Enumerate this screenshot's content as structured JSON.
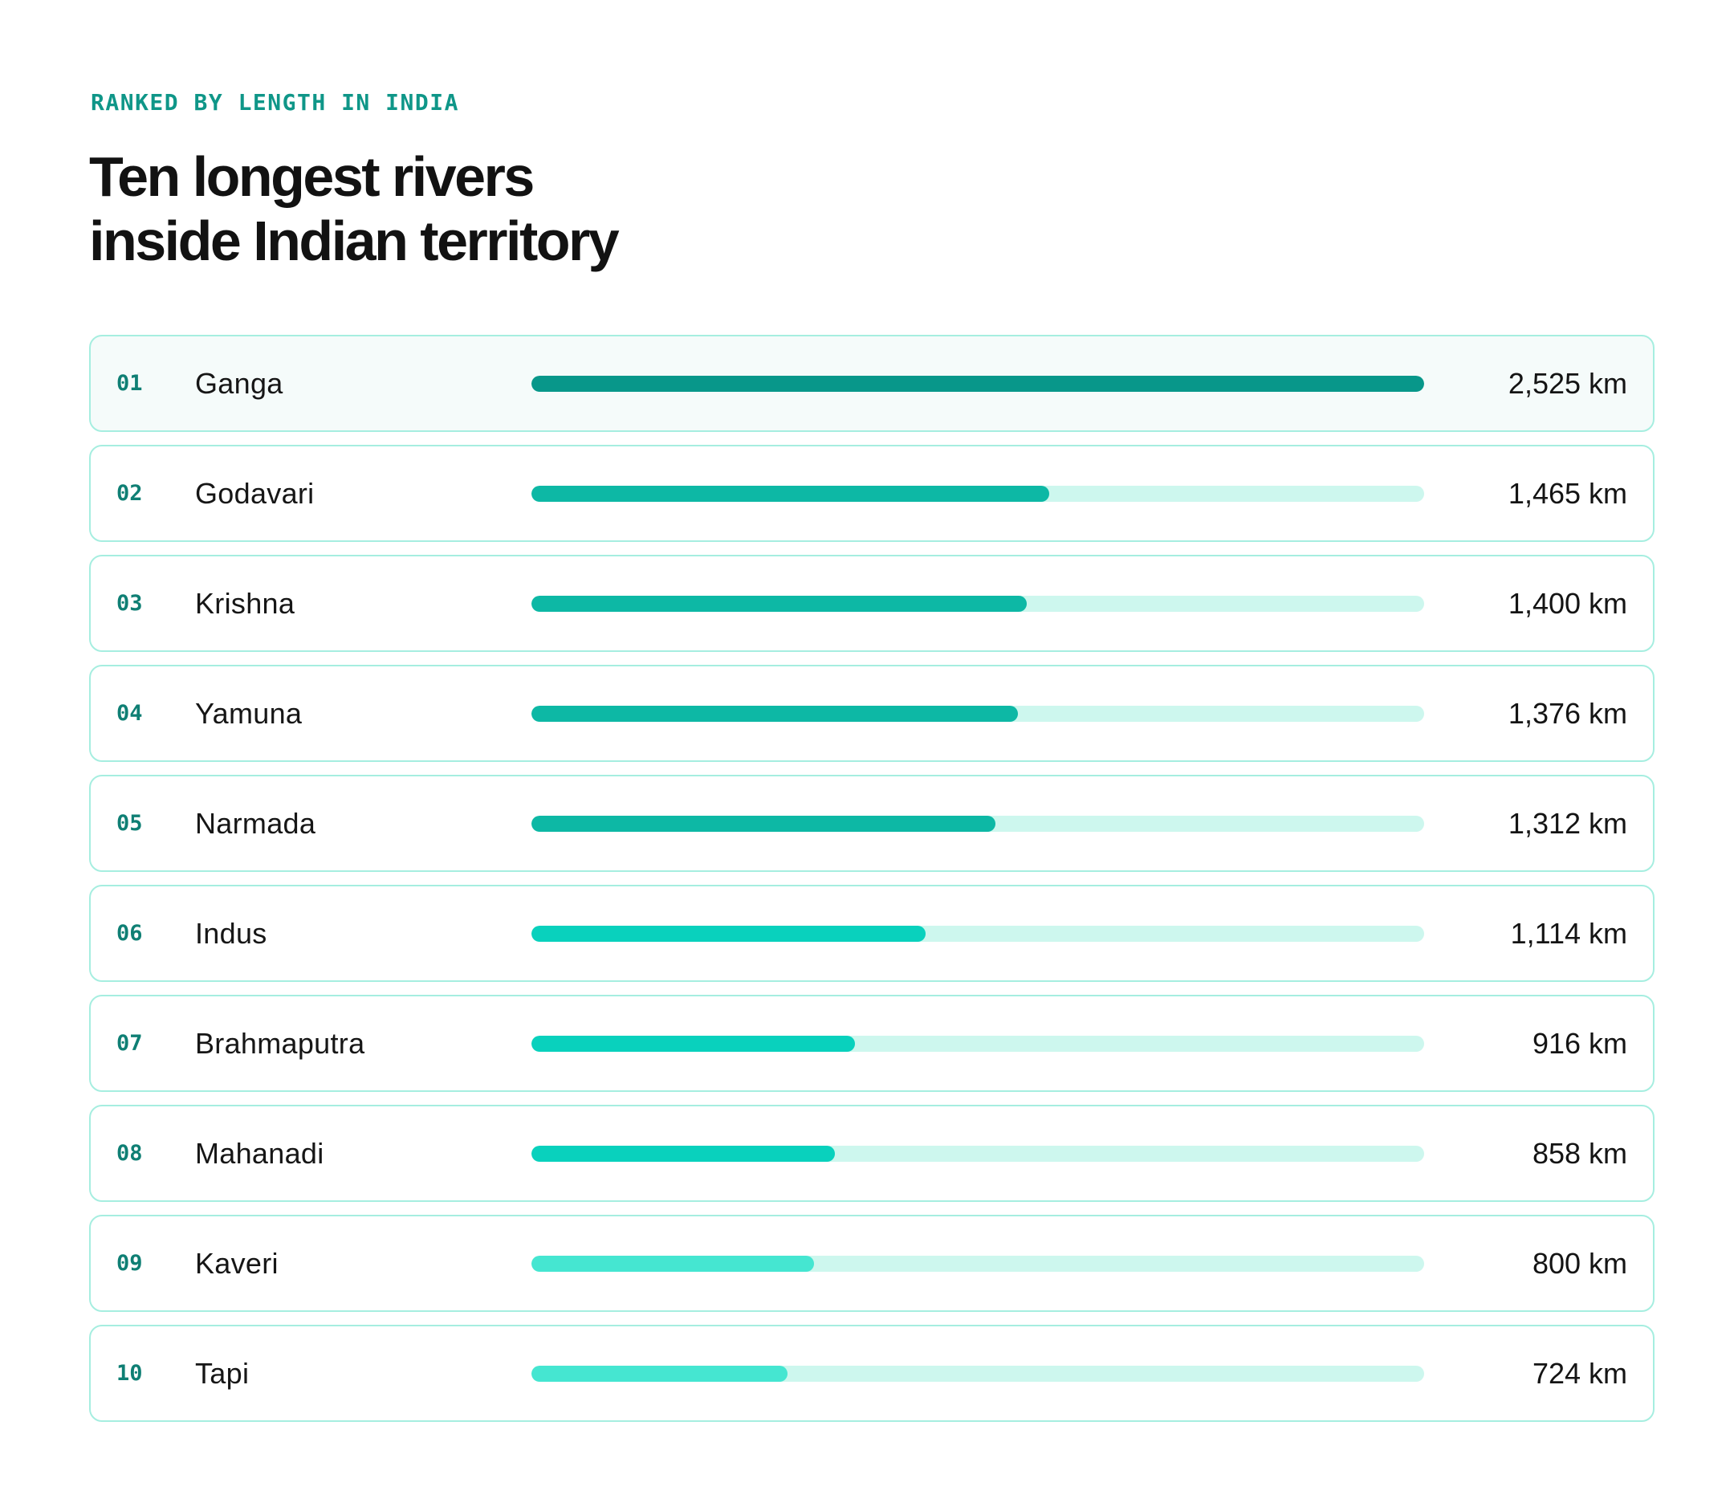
{
  "header": {
    "eyebrow": "RANKED BY LENGTH IN INDIA",
    "title_line1": "Ten longest rivers",
    "title_line2": "inside Indian territory"
  },
  "unit": "km",
  "colors": {
    "track": "#cdf7ee",
    "tier_1": "#08978a",
    "tier_2": "#0db8a5",
    "tier_3": "#09d1bd",
    "tier_4": "#45e6d1"
  },
  "chart_data": {
    "type": "bar",
    "orientation": "horizontal",
    "title": "Ten longest rivers inside Indian territory",
    "subtitle": "RANKED BY LENGTH IN INDIA",
    "xlabel": "",
    "ylabel": "",
    "xlim": [
      0,
      2525
    ],
    "grid": false,
    "legend": "none",
    "rows": [
      {
        "rank": "01",
        "name": "Ganga",
        "value": 2525,
        "label": "2,525 km",
        "tier": "tier_1"
      },
      {
        "rank": "02",
        "name": "Godavari",
        "value": 1465,
        "label": "1,465 km",
        "tier": "tier_2"
      },
      {
        "rank": "03",
        "name": "Krishna",
        "value": 1400,
        "label": "1,400 km",
        "tier": "tier_2"
      },
      {
        "rank": "04",
        "name": "Yamuna",
        "value": 1376,
        "label": "1,376 km",
        "tier": "tier_2"
      },
      {
        "rank": "05",
        "name": "Narmada",
        "value": 1312,
        "label": "1,312 km",
        "tier": "tier_2"
      },
      {
        "rank": "06",
        "name": "Indus",
        "value": 1114,
        "label": "1,114 km",
        "tier": "tier_3"
      },
      {
        "rank": "07",
        "name": "Brahmaputra",
        "value": 916,
        "label": "916 km",
        "tier": "tier_3"
      },
      {
        "rank": "08",
        "name": "Mahanadi",
        "value": 858,
        "label": "858 km",
        "tier": "tier_3"
      },
      {
        "rank": "09",
        "name": "Kaveri",
        "value": 800,
        "label": "800 km",
        "tier": "tier_4"
      },
      {
        "rank": "10",
        "name": "Tapi",
        "value": 724,
        "label": "724 km",
        "tier": "tier_4"
      }
    ]
  }
}
